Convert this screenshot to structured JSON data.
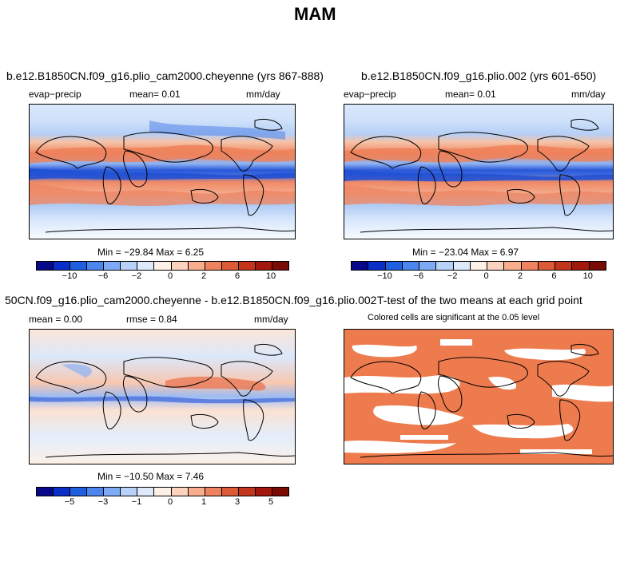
{
  "page": {
    "title": "MAM"
  },
  "panels": [
    {
      "title": "b.e12.B1850CN.f09_g16.plio_cam2000.cheyenne (yrs 867-888)",
      "left_label": "evap−precip",
      "center_label": "mean=    0.01",
      "right_label": "mm/day",
      "stats": "Min = −29.84  Max =   6.25"
    },
    {
      "title": "b.e12.B1850CN.f09_g16.plio.002 (yrs 601-650)",
      "left_label": "evap−precip",
      "center_label": "mean=    0.01",
      "right_label": "mm/day",
      "stats": "Min = −23.04  Max =   6.97"
    },
    {
      "title": "50CN.f09_g16.plio_cam2000.cheyenne - b.e12.B1850CN.f09_g16.plio.002",
      "left_label": "mean =   0.00",
      "center_label": "rmse =    0.84",
      "right_label": "mm/day",
      "stats": "Min = −10.50  Max =   7.46"
    },
    {
      "title": "T-test of the two means at each grid point",
      "subtitle": "Colored cells are significant at the 0.05 level"
    }
  ],
  "colorbars": [
    {
      "colors": [
        "#08088a",
        "#0a2fc8",
        "#1f5fe0",
        "#4a86ee",
        "#7eaaf5",
        "#b7d1f8",
        "#deeafb",
        "#fdf0e6",
        "#fcd4bd",
        "#f8ae8c",
        "#ef8360",
        "#dd5a37",
        "#c4361c",
        "#a2180c",
        "#7a0a04"
      ],
      "ticks": [
        "−10",
        "−6",
        "−2",
        "0",
        "2",
        "6",
        "10"
      ]
    },
    {
      "colors": [
        "#08088a",
        "#0a2fc8",
        "#1f5fe0",
        "#4a86ee",
        "#7eaaf5",
        "#b7d1f8",
        "#deeafb",
        "#fdf0e6",
        "#fcd4bd",
        "#f8ae8c",
        "#ef8360",
        "#dd5a37",
        "#c4361c",
        "#a2180c",
        "#7a0a04"
      ],
      "ticks": [
        "−10",
        "−6",
        "−2",
        "0",
        "2",
        "6",
        "10"
      ]
    },
    {
      "colors": [
        "#08088a",
        "#0a2fc8",
        "#1f5fe0",
        "#4a86ee",
        "#7eaaf5",
        "#b7d1f8",
        "#deeafb",
        "#fdf0e6",
        "#fcd4bd",
        "#f8ae8c",
        "#ef8360",
        "#dd5a37",
        "#c4361c",
        "#a2180c",
        "#7a0a04"
      ],
      "ticks": [
        "−5",
        "−3",
        "−1",
        "0",
        "1",
        "3",
        "5"
      ]
    }
  ],
  "chart_data": [
    {
      "type": "heatmap",
      "title": "b.e12.B1850CN.f09_g16.plio_cam2000.cheyenne (yrs 867-888)",
      "variable": "evap−precip",
      "units": "mm/day",
      "mean": 0.01,
      "min": -29.84,
      "max": 6.25,
      "colorbar_ticks": [
        -10,
        -6,
        -2,
        0,
        2,
        6,
        10
      ]
    },
    {
      "type": "heatmap",
      "title": "b.e12.B1850CN.f09_g16.plio.002 (yrs 601-650)",
      "variable": "evap−precip",
      "units": "mm/day",
      "mean": 0.01,
      "min": -23.04,
      "max": 6.97,
      "colorbar_ticks": [
        -10,
        -6,
        -2,
        0,
        2,
        6,
        10
      ]
    },
    {
      "type": "heatmap",
      "title": "50CN.f09_g16.plio_cam2000.cheyenne - b.e12.B1850CN.f09_g16.plio.002",
      "units": "mm/day",
      "mean": 0.0,
      "rmse": 0.84,
      "min": -10.5,
      "max": 7.46,
      "colorbar_ticks": [
        -5,
        -3,
        -1,
        0,
        1,
        3,
        5
      ]
    },
    {
      "type": "heatmap",
      "title": "T-test of the two means at each grid point",
      "subtitle": "Colored cells are significant at the 0.05 level",
      "significance_level": 0.05
    }
  ]
}
